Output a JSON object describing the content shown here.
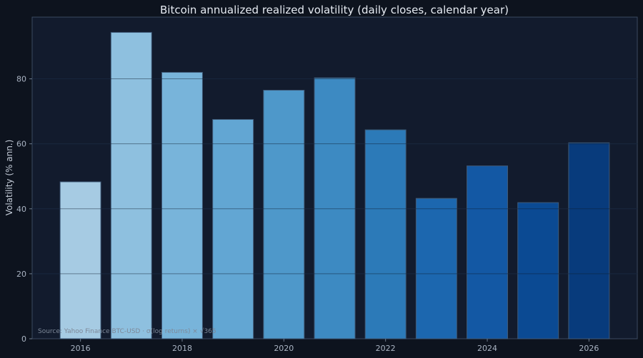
{
  "chart_data": {
    "type": "bar",
    "title": "Bitcoin annualized realized volatility (daily closes, calendar year)",
    "xlabel": "",
    "ylabel": "Volatility (% ann.)",
    "x_ticks": [
      "2016",
      "2018",
      "2020",
      "2022",
      "2024",
      "2026"
    ],
    "x_tick_values": [
      2016,
      2018,
      2020,
      2022,
      2024,
      2026
    ],
    "y_ticks": [
      "0",
      "20",
      "40",
      "60",
      "80"
    ],
    "y_tick_values": [
      0,
      20,
      40,
      60,
      80
    ],
    "xlim": [
      2015.05,
      2026.95
    ],
    "ylim": [
      0,
      99
    ],
    "categories": [
      2016,
      2017,
      2018,
      2019,
      2020,
      2021,
      2022,
      2023,
      2024,
      2025,
      2026
    ],
    "values": [
      48.3,
      94.3,
      82.0,
      67.5,
      76.5,
      80.3,
      64.3,
      43.2,
      53.2,
      41.9,
      60.3
    ],
    "bar_colors": [
      "#a6cbe3",
      "#8ec0df",
      "#78b4da",
      "#62a6d3",
      "#4e98ca",
      "#3d8ac2",
      "#2c7ab8",
      "#1c67af",
      "#1358a4",
      "#0b4a93",
      "#083b7c"
    ],
    "grid": true,
    "legend": "none",
    "source_note": "Source: Yahoo Finance BTC-USD · σ(log returns) × √365"
  }
}
